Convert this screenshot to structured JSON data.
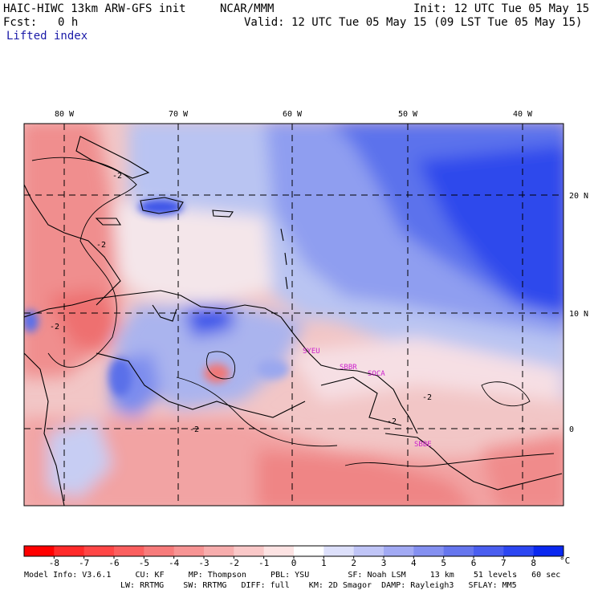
{
  "header": {
    "model_title": "HAIC-HIWC 13km ARW-GFS init",
    "org": "NCAR/MMM",
    "init": "Init: 12 UTC Tue 05 May 15",
    "fcst_label": "Fcst:",
    "fcst_value": "0 h",
    "valid": "Valid: 12 UTC Tue 05 May 15 (09 LST Tue 05 May 15)",
    "field": "Lifted index"
  },
  "axes": {
    "lon_labels": [
      "80 W",
      "70 W",
      "60 W",
      "50 W",
      "40 W"
    ],
    "lat_labels": [
      "20 N",
      "10 N",
      "0"
    ]
  },
  "contour_labels": [
    "-2",
    "-2",
    "-2",
    "-2",
    "-2",
    "-2"
  ],
  "site_labels": [
    "SYEU",
    "SBBR",
    "SOCA",
    "SBBE"
  ],
  "colorbar": {
    "ticks": [
      "-8",
      "-7",
      "-6",
      "-5",
      "-4",
      "-3",
      "-2",
      "-1",
      "0",
      "1",
      "2",
      "3",
      "4",
      "5",
      "6",
      "7",
      "8"
    ],
    "unit": "°C",
    "colors": [
      "#ff0000",
      "#ff2a2a",
      "#ff4646",
      "#fb5f5f",
      "#f77b7b",
      "#f79494",
      "#f7adad",
      "#fac8c8",
      "#fde3e3",
      "#ffffff",
      "#dde0fb",
      "#c0c5f7",
      "#a2aaf4",
      "#8490f1",
      "#6676ee",
      "#4a5ef0",
      "#2c46f2",
      "#0a28f0"
    ]
  },
  "footer": {
    "line1": "Model Info: V3.6.1     CU: KF     MP: Thompson     PBL: YSU        SF: Noah LSM     13 km    51 levels   60 sec",
    "line2": "LW: RRTMG    SW: RRTMG   DIFF: full    KM: 2D Smagor  DAMP: Rayleigh3   SFLAY: MM5"
  }
}
